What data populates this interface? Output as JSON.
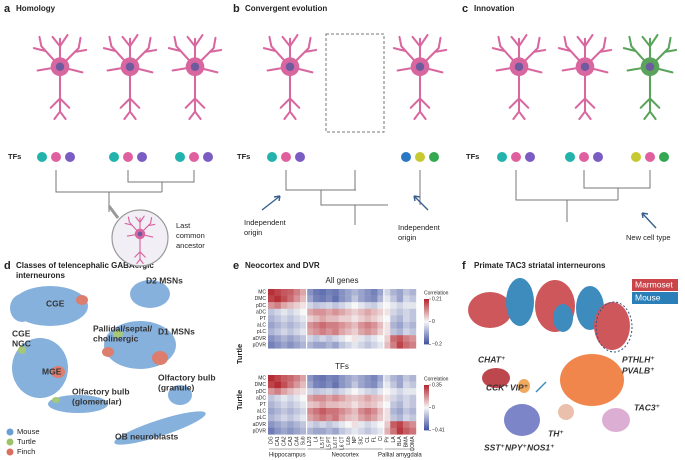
{
  "panels": {
    "a": {
      "letter": "a",
      "title": "Homology",
      "tfs": "TFs",
      "ancestor": [
        "Last",
        "common",
        "ancestor"
      ]
    },
    "b": {
      "letter": "b",
      "title": "Convergent evolution",
      "tfs": "TFs",
      "origin_left": [
        "Independent",
        "origin"
      ],
      "origin_right": [
        "Independent",
        "origin"
      ]
    },
    "c": {
      "letter": "c",
      "title": "Innovation",
      "tfs": "TFs",
      "new_type": "New cell type"
    },
    "d": {
      "letter": "d",
      "title": [
        "Classes of telencephalic GABAergic",
        "interneurons"
      ],
      "clusters": [
        "CGE",
        "Pallidal/septal/",
        "cholinergic",
        "D1 MSNs",
        "D2 MSNs",
        "MGE",
        "Olfactory bulb",
        "(glomerular)",
        "Olfactory bulb",
        "(granule)",
        "OB neuroblasts"
      ],
      "cge_ngc": [
        "CGE",
        "NGC"
      ],
      "legend": [
        {
          "name": "Mouse",
          "color": "#6a9fd4"
        },
        {
          "name": "Turtle",
          "color": "#9cc26a"
        },
        {
          "name": "Finch",
          "color": "#d9705f"
        }
      ]
    },
    "e": {
      "letter": "e",
      "title": "Neocortex and DVR",
      "species": "Turtle",
      "colorbar_title": "Correlation",
      "columns": [
        "DG",
        "CA1",
        "CA2",
        "CA3",
        "CA4",
        "Sub",
        "L2/3",
        "L4",
        "L5 IT",
        "L5 PT",
        "L6 IT",
        "L6 CT",
        "L6b",
        "NP",
        "SIC",
        "CL",
        "FL",
        "Cl",
        "Pir",
        "LA",
        "BLA",
        "BMA",
        "COMA"
      ],
      "groups": [
        {
          "name": "Hippocampus",
          "span": [
            0,
            5
          ]
        },
        {
          "name": "Neocortex",
          "span": [
            6,
            17
          ]
        },
        {
          "name": "Pallial amygdala",
          "span": [
            18,
            22
          ]
        }
      ],
      "heatmaps": [
        {
          "title": "All genes",
          "rows": [
            "MC",
            "DMC",
            "pDC",
            "aDC",
            "PT",
            "aLC",
            "pLC",
            "aDVR",
            "pDVR"
          ],
          "clim": [
            -0.2,
            0.21
          ],
          "cticks": [
            0.21,
            0,
            {
              "value": -0.2,
              "label": "−0.2"
            }
          ],
          "values": [
            [
              0.2,
              0.18,
              0.16,
              0.15,
              0.12,
              0.08,
              -0.12,
              -0.15,
              -0.16,
              -0.14,
              -0.15,
              -0.12,
              -0.1,
              -0.08,
              -0.1,
              -0.12,
              -0.14,
              -0.1,
              -0.04,
              -0.08,
              -0.1,
              -0.06,
              -0.08
            ],
            [
              0.18,
              0.2,
              0.17,
              0.14,
              0.1,
              0.06,
              -0.1,
              -0.14,
              -0.15,
              -0.13,
              -0.16,
              -0.12,
              -0.1,
              -0.06,
              -0.1,
              -0.12,
              -0.13,
              -0.08,
              -0.02,
              -0.06,
              -0.1,
              -0.04,
              -0.06
            ],
            [
              0.1,
              0.12,
              0.08,
              0.06,
              0.04,
              0.02,
              -0.04,
              -0.06,
              -0.05,
              -0.04,
              -0.06,
              -0.04,
              -0.02,
              0,
              -0.02,
              -0.04,
              -0.05,
              -0.02,
              0,
              -0.02,
              -0.04,
              -0.02,
              -0.02
            ],
            [
              -0.06,
              -0.04,
              -0.02,
              -0.04,
              -0.02,
              0,
              0.08,
              0.1,
              0.1,
              0.08,
              0.1,
              0.08,
              0.06,
              0.04,
              0.06,
              0.08,
              0.06,
              0.04,
              0.02,
              -0.04,
              -0.06,
              -0.04,
              -0.06
            ],
            [
              -0.08,
              -0.06,
              -0.04,
              -0.06,
              -0.04,
              -0.02,
              0.04,
              0.06,
              0.08,
              0.06,
              0.06,
              0.04,
              0.04,
              0.02,
              0.04,
              0.06,
              0.04,
              0.02,
              0,
              -0.06,
              -0.08,
              -0.04,
              -0.06
            ],
            [
              -0.1,
              -0.08,
              -0.06,
              -0.08,
              -0.06,
              -0.04,
              0.1,
              0.12,
              0.14,
              0.12,
              0.12,
              0.1,
              0.08,
              0.06,
              0.1,
              0.12,
              0.1,
              0.06,
              0.02,
              -0.08,
              -0.1,
              -0.06,
              -0.08
            ],
            [
              -0.08,
              -0.06,
              -0.04,
              -0.06,
              -0.04,
              -0.02,
              0.08,
              0.1,
              0.12,
              0.1,
              0.12,
              0.08,
              0.06,
              0.04,
              0.08,
              0.1,
              0.08,
              0.04,
              0.02,
              -0.06,
              -0.08,
              -0.04,
              -0.06
            ],
            [
              -0.12,
              -0.1,
              -0.08,
              -0.1,
              -0.08,
              -0.06,
              -0.04,
              -0.06,
              -0.04,
              -0.06,
              -0.04,
              -0.02,
              0,
              0.02,
              -0.02,
              -0.04,
              -0.02,
              0,
              0.04,
              0.14,
              0.16,
              0.12,
              0.1
            ],
            [
              -0.14,
              -0.12,
              -0.1,
              -0.12,
              -0.1,
              -0.08,
              -0.08,
              -0.1,
              -0.1,
              -0.08,
              -0.1,
              -0.06,
              -0.04,
              -0.02,
              -0.04,
              -0.06,
              -0.04,
              -0.02,
              0.06,
              0.12,
              0.18,
              0.14,
              0.12
            ]
          ]
        },
        {
          "title": "TFs",
          "rows": [
            "MC",
            "DMC",
            "pDC",
            "aDC",
            "PT",
            "aLC",
            "pLC",
            "aDVR",
            "pDVR"
          ],
          "clim": [
            -0.41,
            0.35
          ],
          "cticks": [
            0.35,
            0,
            {
              "value": -0.41,
              "label": "−0.41"
            }
          ],
          "values": [
            [
              0.34,
              0.3,
              0.26,
              0.24,
              0.2,
              0.14,
              -0.24,
              -0.3,
              -0.32,
              -0.28,
              -0.3,
              -0.24,
              -0.2,
              -0.16,
              -0.2,
              -0.24,
              -0.28,
              -0.2,
              -0.08,
              -0.16,
              -0.2,
              -0.12,
              -0.16
            ],
            [
              0.3,
              0.34,
              0.28,
              0.22,
              0.16,
              0.1,
              -0.2,
              -0.28,
              -0.3,
              -0.26,
              -0.32,
              -0.24,
              -0.2,
              -0.12,
              -0.2,
              -0.24,
              -0.26,
              -0.16,
              -0.04,
              -0.12,
              -0.2,
              -0.08,
              -0.12
            ],
            [
              0.16,
              0.2,
              0.14,
              0.1,
              0.06,
              0.04,
              -0.08,
              -0.12,
              -0.1,
              -0.08,
              -0.12,
              -0.08,
              -0.04,
              0,
              -0.04,
              -0.08,
              -0.1,
              -0.04,
              0,
              -0.04,
              -0.08,
              -0.04,
              -0.04
            ],
            [
              -0.12,
              -0.08,
              -0.04,
              -0.08,
              -0.04,
              0,
              0.14,
              0.18,
              0.18,
              0.14,
              0.18,
              0.14,
              0.1,
              0.08,
              0.1,
              0.14,
              0.1,
              0.08,
              0.04,
              -0.08,
              -0.12,
              -0.08,
              -0.12
            ],
            [
              -0.16,
              -0.12,
              -0.08,
              -0.12,
              -0.08,
              -0.04,
              0.08,
              0.1,
              0.14,
              0.1,
              0.1,
              0.08,
              0.08,
              0.04,
              0.08,
              0.1,
              0.08,
              0.04,
              0,
              -0.12,
              -0.16,
              -0.08,
              -0.12
            ],
            [
              -0.2,
              -0.16,
              -0.12,
              -0.16,
              -0.12,
              -0.08,
              0.18,
              0.22,
              0.26,
              0.22,
              0.22,
              0.18,
              0.14,
              0.1,
              0.18,
              0.22,
              0.18,
              0.1,
              0.04,
              -0.16,
              -0.2,
              -0.12,
              -0.16
            ],
            [
              -0.16,
              -0.12,
              -0.08,
              -0.12,
              -0.08,
              -0.04,
              0.14,
              0.18,
              0.22,
              0.18,
              0.22,
              0.14,
              0.1,
              0.08,
              0.14,
              0.18,
              0.14,
              0.08,
              0.04,
              -0.12,
              -0.16,
              -0.08,
              -0.12
            ],
            [
              -0.24,
              -0.2,
              -0.16,
              -0.2,
              -0.16,
              -0.12,
              -0.08,
              -0.12,
              -0.08,
              -0.12,
              -0.08,
              -0.04,
              0,
              0.04,
              -0.04,
              -0.08,
              -0.04,
              0,
              0.08,
              0.26,
              0.3,
              0.22,
              0.18
            ],
            [
              -0.3,
              -0.24,
              -0.2,
              -0.24,
              -0.2,
              -0.16,
              -0.16,
              -0.2,
              -0.2,
              -0.16,
              -0.2,
              -0.12,
              -0.08,
              -0.04,
              -0.08,
              -0.12,
              -0.08,
              -0.04,
              0.12,
              0.22,
              0.32,
              0.26,
              0.22
            ]
          ]
        }
      ]
    },
    "f": {
      "letter": "f",
      "title": "Primate TAC3 striatal interneurons",
      "legend": [
        {
          "name": "Marmoset",
          "color": "#c9454a"
        },
        {
          "name": "Mouse",
          "color": "#2a7fb8"
        }
      ],
      "types": [
        "CHAT⁺",
        "CCK⁺",
        "VIP⁺",
        "PTHLH⁺",
        "PVALB⁺",
        "TH⁺",
        "TAC3⁺",
        "SST⁺NPY⁺NOS1⁺"
      ]
    }
  }
}
